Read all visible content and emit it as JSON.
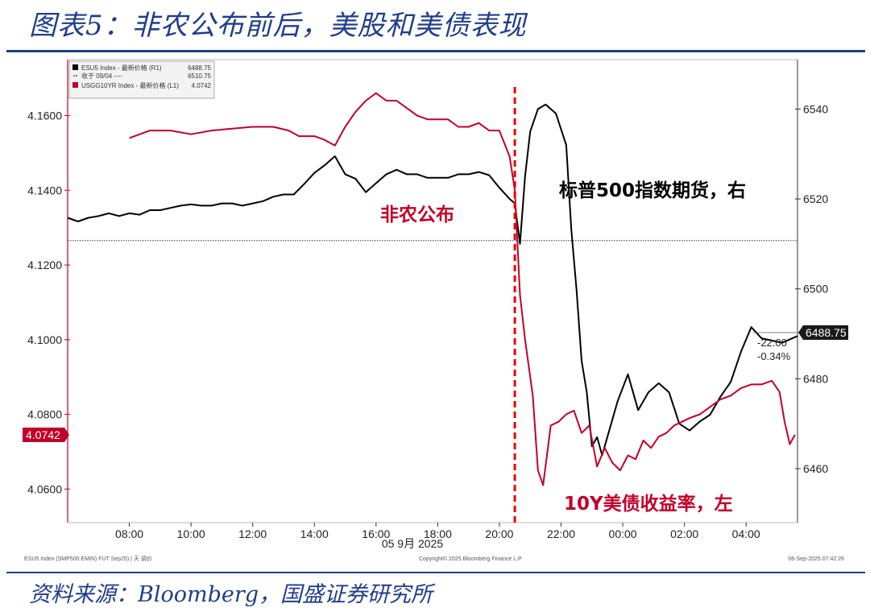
{
  "header": {
    "title": "图表5：非农公布前后，美股和美债表现",
    "source": "资料来源：Bloomberg，国盛证券研究所"
  },
  "colors": {
    "brand": "#1f3d8a",
    "yield": "#c0002a",
    "spx": "#000000"
  },
  "chart_data": {
    "type": "line",
    "title": "",
    "xlabel": "05 9月 2025",
    "x_ticks": [
      "08:00",
      "10:00",
      "12:00",
      "14:00",
      "16:00",
      "18:00",
      "20:00",
      "22:00",
      "00:00",
      "02:00",
      "04:00"
    ],
    "x_range": [
      "06:00",
      "05:40"
    ],
    "y_left": {
      "label": "",
      "ticks": [
        "4.1600",
        "4.1400",
        "4.1200",
        "4.1000",
        "4.0800",
        "4.0600"
      ],
      "range": [
        4.051,
        4.175
      ]
    },
    "y_right": {
      "label": "",
      "ticks": [
        "6540",
        "6520",
        "6500",
        "6480",
        "6460"
      ],
      "range": [
        6448,
        6551
      ]
    },
    "legend": {
      "placement": "top-left",
      "entries": [
        {
          "label": "ESU5 Index - 最新价格 (R1)",
          "value": "6488.75",
          "color": "#000000"
        },
        {
          "label": "收于 09/04 ----",
          "value": "6510.75",
          "color": "#000000"
        },
        {
          "label": "USGG10YR Index - 最新价格 (L1)",
          "value": "4.0742",
          "color": "#c0002a"
        }
      ]
    },
    "reference_line": {
      "label": "收于 09/04",
      "value": 6510.75,
      "axis": "right"
    },
    "event_line": {
      "time": "20:30",
      "label": "非农公布"
    },
    "last_values": {
      "left": "4.0742",
      "right": "6488.75",
      "change": "-22.00",
      "change_pct": "-0.34%"
    },
    "series": [
      {
        "name": "ESU5 Index - 最新价格 (R1)",
        "axis": "right",
        "color": "#000000",
        "points": [
          [
            "06:00",
            6515.8
          ],
          [
            "06:20",
            6515
          ],
          [
            "06:40",
            6515.8
          ],
          [
            "07:00",
            6516.2
          ],
          [
            "07:20",
            6516.8
          ],
          [
            "07:40",
            6516.2
          ],
          [
            "08:00",
            6516.8
          ],
          [
            "08:20",
            6516.5
          ],
          [
            "08:40",
            6517.5
          ],
          [
            "09:00",
            6517.5
          ],
          [
            "09:20",
            6518
          ],
          [
            "09:40",
            6518.5
          ],
          [
            "10:00",
            6518.8
          ],
          [
            "10:20",
            6518.5
          ],
          [
            "10:40",
            6518.5
          ],
          [
            "11:00",
            6519
          ],
          [
            "11:20",
            6519
          ],
          [
            "11:40",
            6518.5
          ],
          [
            "12:00",
            6519
          ],
          [
            "12:20",
            6519.5
          ],
          [
            "12:40",
            6520.5
          ],
          [
            "13:00",
            6521
          ],
          [
            "13:20",
            6521
          ],
          [
            "13:40",
            6523.3
          ],
          [
            "14:00",
            6525.8
          ],
          [
            "14:20",
            6527.5
          ],
          [
            "14:40",
            6529.5
          ],
          [
            "15:00",
            6525.5
          ],
          [
            "15:20",
            6524.5
          ],
          [
            "15:40",
            6521.5
          ],
          [
            "16:00",
            6523.5
          ],
          [
            "16:20",
            6525.5
          ],
          [
            "16:40",
            6526.5
          ],
          [
            "17:00",
            6525.5
          ],
          [
            "17:20",
            6525.5
          ],
          [
            "17:40",
            6524.7
          ],
          [
            "18:00",
            6524.7
          ],
          [
            "18:20",
            6524.7
          ],
          [
            "18:40",
            6525.5
          ],
          [
            "19:00",
            6525.5
          ],
          [
            "19:20",
            6526
          ],
          [
            "19:40",
            6525.3
          ],
          [
            "20:00",
            6522.5
          ],
          [
            "20:20",
            6520
          ],
          [
            "20:30",
            6519
          ],
          [
            "20:40",
            6510
          ],
          [
            "20:50",
            6525
          ],
          [
            "21:00",
            6535
          ],
          [
            "21:15",
            6540
          ],
          [
            "21:30",
            6541
          ],
          [
            "21:50",
            6539
          ],
          [
            "22:10",
            6532
          ],
          [
            "22:20",
            6513
          ],
          [
            "22:30",
            6500
          ],
          [
            "22:40",
            6484
          ],
          [
            "22:50",
            6477
          ],
          [
            "23:00",
            6465
          ],
          [
            "23:10",
            6467
          ],
          [
            "23:20",
            6463
          ],
          [
            "23:40",
            6471
          ],
          [
            "23:50",
            6475
          ],
          [
            "00:10",
            6481
          ],
          [
            "00:30",
            6473
          ],
          [
            "00:50",
            6477
          ],
          [
            "01:10",
            6479
          ],
          [
            "01:30",
            6477
          ],
          [
            "01:50",
            6470
          ],
          [
            "02:10",
            6468.5
          ],
          [
            "02:30",
            6470.5
          ],
          [
            "02:50",
            6472
          ],
          [
            "03:10",
            6476
          ],
          [
            "03:30",
            6479.3
          ],
          [
            "03:50",
            6486
          ],
          [
            "04:10",
            6491.5
          ],
          [
            "04:30",
            6489
          ],
          [
            "04:50",
            6488.5
          ],
          [
            "05:10",
            6488
          ],
          [
            "05:30",
            6489
          ],
          [
            "05:40",
            6489.5
          ]
        ]
      },
      {
        "name": "USGG10YR Index - 最新价格 (L1)",
        "axis": "left",
        "color": "#c0002a",
        "points": [
          [
            "08:00",
            4.154
          ],
          [
            "08:40",
            4.156
          ],
          [
            "09:20",
            4.156
          ],
          [
            "10:00",
            4.155
          ],
          [
            "10:40",
            4.156
          ],
          [
            "11:20",
            4.1565
          ],
          [
            "12:00",
            4.157
          ],
          [
            "12:40",
            4.157
          ],
          [
            "13:10",
            4.156
          ],
          [
            "13:30",
            4.1545
          ],
          [
            "14:00",
            4.1545
          ],
          [
            "14:20",
            4.1535
          ],
          [
            "14:40",
            4.152
          ],
          [
            "15:00",
            4.157
          ],
          [
            "15:20",
            4.161
          ],
          [
            "15:40",
            4.164
          ],
          [
            "16:00",
            4.166
          ],
          [
            "16:20",
            4.164
          ],
          [
            "16:40",
            4.164
          ],
          [
            "17:00",
            4.162
          ],
          [
            "17:20",
            4.16
          ],
          [
            "17:40",
            4.159
          ],
          [
            "18:00",
            4.159
          ],
          [
            "18:20",
            4.159
          ],
          [
            "18:40",
            4.157
          ],
          [
            "19:00",
            4.157
          ],
          [
            "19:20",
            4.158
          ],
          [
            "19:40",
            4.156
          ],
          [
            "20:00",
            4.156
          ],
          [
            "20:20",
            4.149
          ],
          [
            "20:30",
            4.14
          ],
          [
            "20:40",
            4.112
          ],
          [
            "20:50",
            4.1
          ],
          [
            "21:05",
            4.085
          ],
          [
            "21:15",
            4.065
          ],
          [
            "21:25",
            4.061
          ],
          [
            "21:40",
            4.077
          ],
          [
            "21:55",
            4.078
          ],
          [
            "22:10",
            4.08
          ],
          [
            "22:25",
            4.081
          ],
          [
            "22:40",
            4.075
          ],
          [
            "22:55",
            4.077
          ],
          [
            "23:10",
            4.066
          ],
          [
            "23:25",
            4.071
          ],
          [
            "23:40",
            4.067
          ],
          [
            "23:55",
            4.065
          ],
          [
            "00:10",
            4.069
          ],
          [
            "00:25",
            4.068
          ],
          [
            "00:40",
            4.073
          ],
          [
            "00:55",
            4.071
          ],
          [
            "01:10",
            4.074
          ],
          [
            "01:25",
            4.075
          ],
          [
            "01:40",
            4.077
          ],
          [
            "01:55",
            4.078
          ],
          [
            "02:10",
            4.079
          ],
          [
            "02:30",
            4.08
          ],
          [
            "02:50",
            4.082
          ],
          [
            "03:10",
            4.084
          ],
          [
            "03:30",
            4.085
          ],
          [
            "03:50",
            4.087
          ],
          [
            "04:10",
            4.088
          ],
          [
            "04:30",
            4.088
          ],
          [
            "04:50",
            4.089
          ],
          [
            "05:05",
            4.086
          ],
          [
            "05:15",
            4.078
          ],
          [
            "05:25",
            4.072
          ],
          [
            "05:35",
            4.0745
          ]
        ]
      }
    ],
    "annotations": [
      {
        "text": "标普500指数期货，右",
        "color": "#000000"
      },
      {
        "text": "10Y美债收益率，左",
        "color": "#c0002a"
      }
    ],
    "footer": {
      "left": "ESU5 Index (SMP500 EMIN) FUT Sep25) | 天 调价",
      "center": "Copyright© 2025 Bloomberg Finance L.P.",
      "right": "06-Sep-2025 07:42:26"
    }
  }
}
